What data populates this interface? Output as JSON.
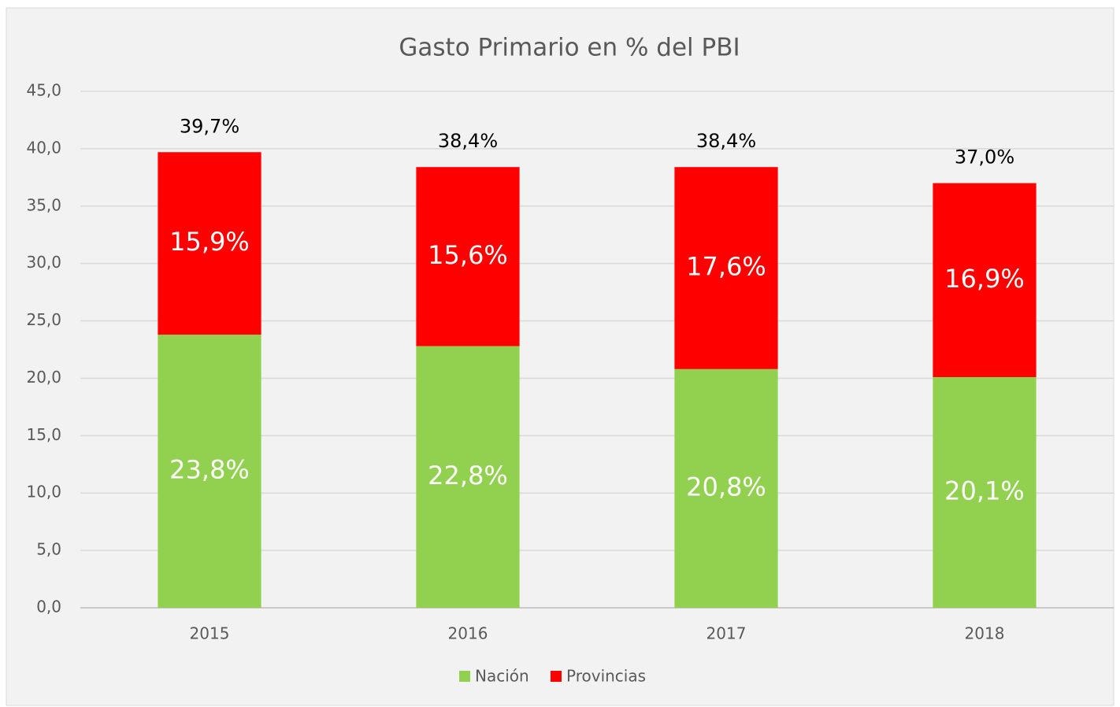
{
  "chart_data": {
    "type": "stacked_bar",
    "title": "Gasto Primario en % del PBI",
    "categories": [
      "2015",
      "2016",
      "2017",
      "2018"
    ],
    "series": [
      {
        "name": "Nación",
        "color": "#92d050",
        "values": [
          23.8,
          22.8,
          20.8,
          20.1
        ],
        "value_labels": [
          "23,8%",
          "22,8%",
          "20,8%",
          "20,1%"
        ]
      },
      {
        "name": "Provincias",
        "color": "#ff0000",
        "values": [
          15.9,
          15.6,
          17.6,
          16.9
        ],
        "value_labels": [
          "15,9%",
          "15,6%",
          "17,6%",
          "16,9%"
        ]
      }
    ],
    "totals": [
      39.7,
      38.4,
      38.4,
      37.0
    ],
    "total_labels": [
      "39,7%",
      "38,4%",
      "38,4%",
      "37,0%"
    ],
    "ylim": [
      0,
      45
    ],
    "yticks": [
      {
        "value": 0,
        "label": "0,0"
      },
      {
        "value": 5,
        "label": "5,0"
      },
      {
        "value": 10,
        "label": "10,0"
      },
      {
        "value": 15,
        "label": "15,0"
      },
      {
        "value": 20,
        "label": "20,0"
      },
      {
        "value": 25,
        "label": "25,0"
      },
      {
        "value": 30,
        "label": "30,0"
      },
      {
        "value": 35,
        "label": "35,0"
      },
      {
        "value": 40,
        "label": "40,0"
      },
      {
        "value": 45,
        "label": "45,0"
      }
    ],
    "grid": true,
    "legend": "bottom"
  }
}
